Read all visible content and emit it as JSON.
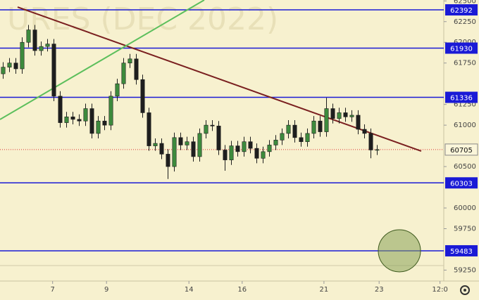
{
  "chart_data": {
    "type": "candlestick",
    "watermark": "URES (DEC 2022)",
    "x": [
      0,
      1,
      2,
      3,
      4,
      5,
      6,
      7,
      8,
      9,
      10,
      11,
      12,
      13,
      14,
      15,
      16,
      17,
      18,
      19,
      20,
      21,
      22,
      23,
      24,
      25,
      26,
      27,
      28,
      29,
      30,
      31,
      32,
      33,
      34,
      35,
      36,
      37,
      38,
      39,
      40,
      41,
      42,
      43,
      44,
      45,
      46,
      47,
      48,
      49,
      50,
      51,
      52,
      53,
      54,
      55,
      56,
      57,
      58,
      59
    ],
    "open": [
      61620,
      61700,
      61750,
      61680,
      62000,
      62150,
      61900,
      61950,
      61980,
      61350,
      61030,
      61100,
      61070,
      61050,
      61200,
      60900,
      61050,
      61000,
      61350,
      61500,
      61750,
      61800,
      61550,
      61150,
      60750,
      60780,
      60650,
      60500,
      60850,
      60760,
      60800,
      60620,
      60900,
      61000,
      60990,
      60700,
      60580,
      60750,
      60680,
      60800,
      60720,
      60600,
      60680,
      60760,
      60820,
      60900,
      61000,
      60850,
      60800,
      60900,
      61050,
      60920,
      61200,
      61080,
      61150,
      61100,
      61120,
      60950,
      60900,
      60700
    ],
    "high": [
      61760,
      61810,
      61810,
      62060,
      62210,
      62210,
      62010,
      62040,
      62040,
      61410,
      61160,
      61160,
      61130,
      61260,
      61260,
      61110,
      61110,
      61410,
      61560,
      61810,
      61860,
      61860,
      61610,
      61210,
      60840,
      60840,
      60710,
      60910,
      60910,
      60860,
      60860,
      60960,
      61060,
      61060,
      61050,
      60760,
      60810,
      60810,
      60860,
      60860,
      60780,
      60740,
      60820,
      60880,
      60960,
      61060,
      61060,
      60910,
      60960,
      61110,
      61110,
      61330,
      61260,
      61210,
      61210,
      61180,
      61180,
      61010,
      60960,
      60760
    ],
    "low": [
      61560,
      61640,
      61620,
      61620,
      61940,
      61840,
      61840,
      61890,
      61290,
      60970,
      60970,
      61010,
      60990,
      60990,
      60840,
      60840,
      60940,
      60940,
      61290,
      61440,
      61690,
      61490,
      61090,
      60690,
      60690,
      60590,
      60350,
      60440,
      60700,
      60700,
      60560,
      60560,
      60840,
      60930,
      60640,
      60450,
      60520,
      60620,
      60620,
      60660,
      60540,
      60540,
      60620,
      60700,
      60760,
      60840,
      60790,
      60740,
      60740,
      60840,
      60860,
      60860,
      61020,
      61020,
      61040,
      61040,
      60890,
      60840,
      60600,
      60640
    ],
    "close": [
      61700,
      61750,
      61680,
      62000,
      62150,
      61900,
      61950,
      61980,
      61350,
      61030,
      61100,
      61070,
      61050,
      61200,
      60900,
      61050,
      61000,
      61350,
      61500,
      61750,
      61800,
      61550,
      61150,
      60750,
      60780,
      60650,
      60500,
      60850,
      60760,
      60800,
      60620,
      60900,
      61000,
      60990,
      60700,
      60580,
      60750,
      60680,
      60800,
      60720,
      60600,
      60680,
      60760,
      60820,
      60900,
      61000,
      60850,
      60800,
      60900,
      61050,
      60920,
      61200,
      61080,
      61150,
      61100,
      61120,
      60950,
      60900,
      60700,
      60705
    ],
    "up_color": "#3d8b3d",
    "down_color": "#1e1e1e",
    "xlim": [
      -0.5,
      69.5
    ],
    "xticks": [
      {
        "value": 7.8,
        "label": "7"
      },
      {
        "value": 16.3,
        "label": "9"
      },
      {
        "value": 29.3,
        "label": "14"
      },
      {
        "value": 37.7,
        "label": "16"
      },
      {
        "value": 50.6,
        "label": "21"
      },
      {
        "value": 59.3,
        "label": "23"
      },
      {
        "value": 68.9,
        "label": "12:0"
      }
    ],
    "ylim": [
      59118,
      62511
    ],
    "yticks": [
      62500,
      62250,
      62000,
      61750,
      61250,
      61000,
      60500,
      60000,
      59750,
      59250
    ],
    "levels": [
      62392,
      61930,
      61336,
      60303,
      59483
    ],
    "level_color": "#1a1ad6",
    "last_price": 60705,
    "last_price_color": "#d33",
    "trendlines": [
      {
        "color": "#7a1f1f",
        "x": [
          2.28,
          65.94
        ],
        "y": [
          62426,
          60687
        ]
      },
      {
        "color": "#5cbf5c",
        "x": [
          -0.5,
          31.72
        ],
        "y": [
          61069,
          62511
        ]
      }
    ],
    "target_circle": {
      "x": 62.5,
      "y": 59483,
      "color": "#8aa35a"
    }
  }
}
